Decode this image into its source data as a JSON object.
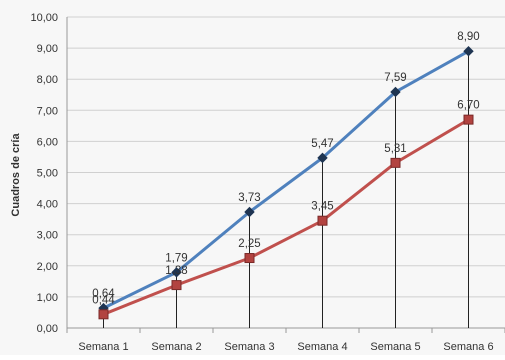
{
  "chart_data": {
    "type": "line",
    "title": "",
    "xlabel": "",
    "ylabel": "Cuadros de cría",
    "categories": [
      "Semana 1",
      "Semana 2",
      "Semana 3",
      "Semana 4",
      "Semana 5",
      "Semana 6"
    ],
    "ylim": [
      0,
      10
    ],
    "yticks": [
      "0,00",
      "1,00",
      "2,00",
      "3,00",
      "4,00",
      "5,00",
      "6,00",
      "7,00",
      "8,00",
      "9,00",
      "10,00"
    ],
    "grid": true,
    "drop_lines": true,
    "series": [
      {
        "color": "#4f81bd",
        "marker": "diamond",
        "values": [
          0.64,
          1.79,
          3.73,
          5.47,
          7.59,
          8.9
        ],
        "labels": [
          "0,64",
          "1,79",
          "3,73",
          "5,47",
          "7,59",
          "8,90"
        ]
      },
      {
        "color": "#c0504d",
        "marker": "square",
        "values": [
          0.44,
          1.38,
          2.25,
          3.45,
          5.31,
          6.7
        ],
        "labels": [
          "0,44",
          "1,38",
          "2,25",
          "3,45",
          "5,31",
          "6,70"
        ]
      }
    ]
  }
}
